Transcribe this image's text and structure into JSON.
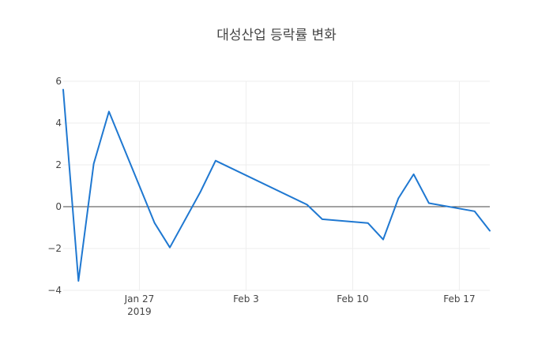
{
  "chart_data": {
    "type": "line",
    "title": "대성산업 등락률 변화",
    "xlabel": "",
    "ylabel": "",
    "x_range": [
      "2019-01-22",
      "2019-02-19"
    ],
    "ylim": [
      -4,
      6
    ],
    "y_ticks": [
      6,
      4,
      2,
      0,
      -2,
      -4
    ],
    "y_tick_labels": [
      "6",
      "4",
      "2",
      "0",
      "−2",
      "−4"
    ],
    "x_ticks": [
      {
        "date": "2019-01-27",
        "label": "Jan 27",
        "sublabel": "2019"
      },
      {
        "date": "2019-02-03",
        "label": "Feb 3",
        "sublabel": ""
      },
      {
        "date": "2019-02-10",
        "label": "Feb 10",
        "sublabel": ""
      },
      {
        "date": "2019-02-17",
        "label": "Feb 17",
        "sublabel": ""
      }
    ],
    "grid": true,
    "zero_line": true,
    "line_color": "#1f78d1",
    "series": [
      {
        "x": [
          "2019-01-22",
          "2019-01-23",
          "2019-01-24",
          "2019-01-25",
          "2019-01-28",
          "2019-01-29",
          "2019-01-31",
          "2019-02-01",
          "2019-02-07",
          "2019-02-08",
          "2019-02-11",
          "2019-02-12",
          "2019-02-13",
          "2019-02-14",
          "2019-02-15",
          "2019-02-18",
          "2019-02-19"
        ],
        "y": [
          5.6,
          -3.55,
          2.05,
          4.55,
          -0.78,
          -1.95,
          0.7,
          2.2,
          0.1,
          -0.6,
          -0.78,
          -1.57,
          0.4,
          1.55,
          0.17,
          -0.22,
          -1.15
        ]
      }
    ]
  }
}
